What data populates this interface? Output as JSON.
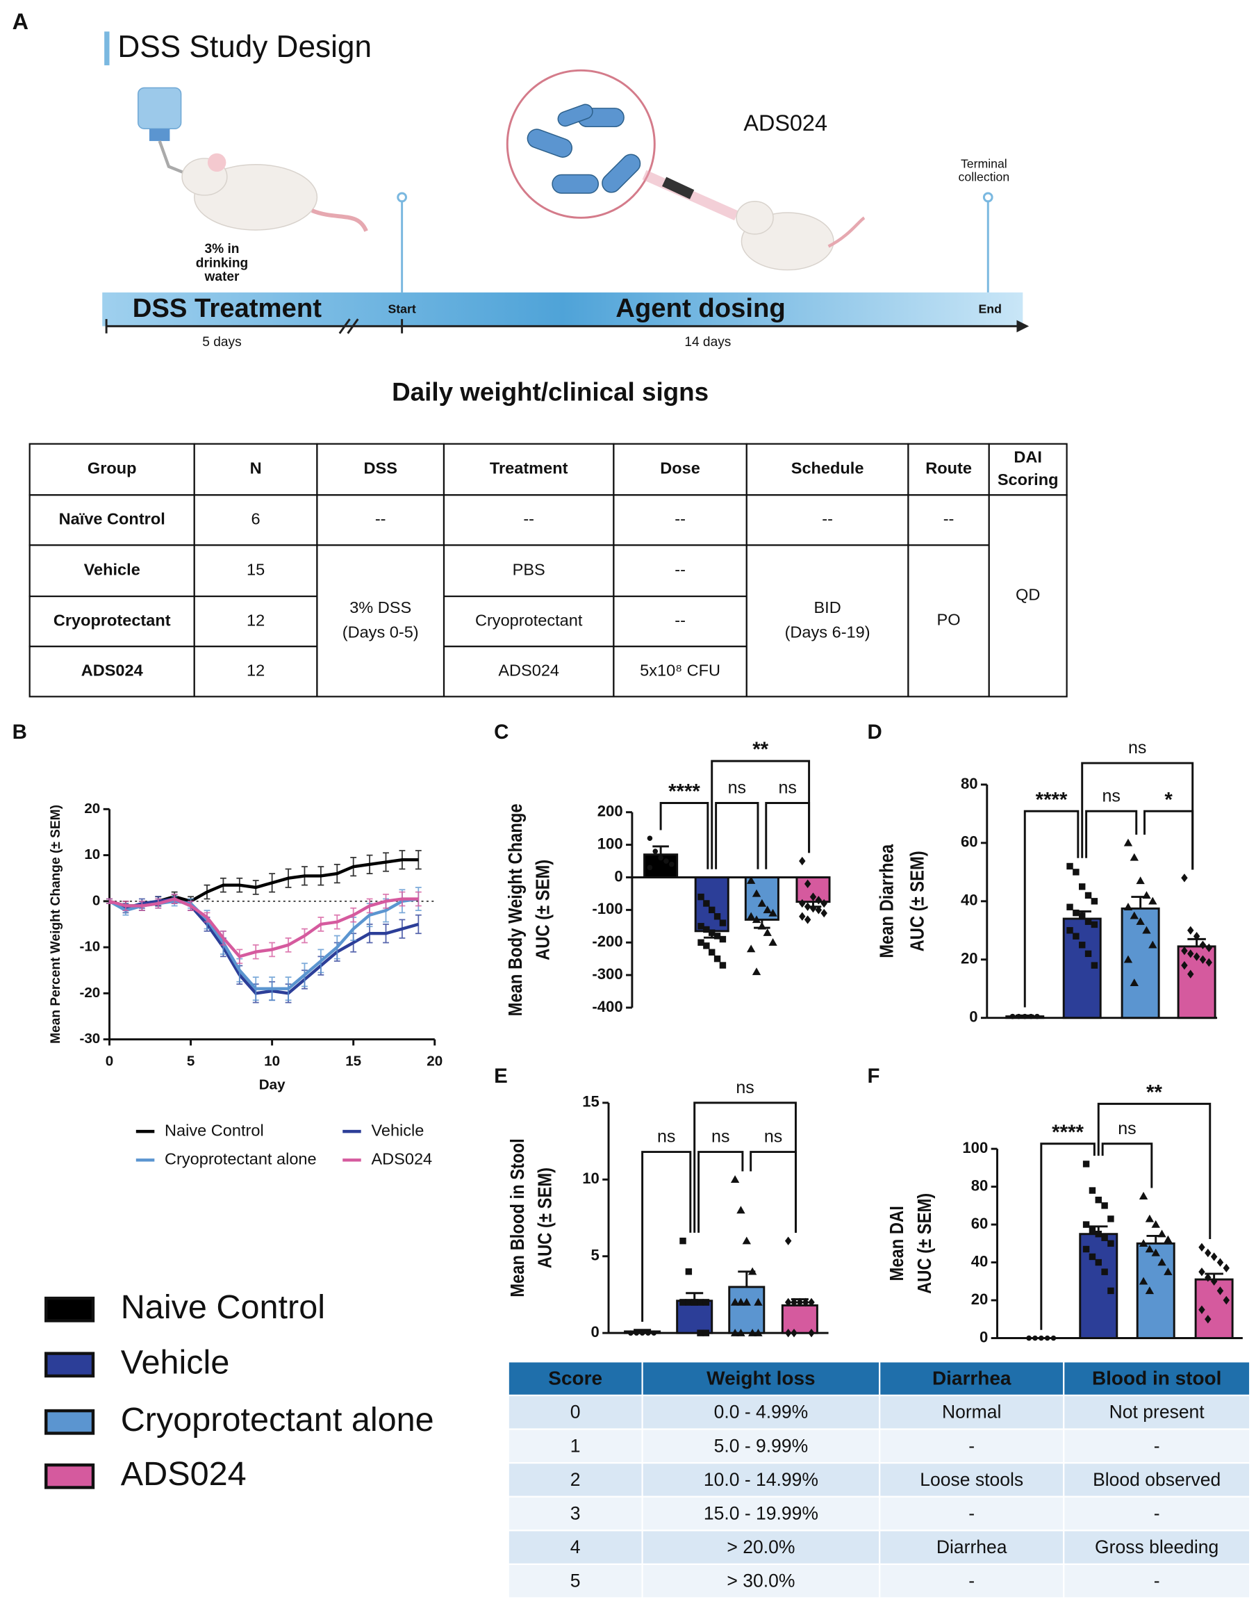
{
  "study_design": {
    "panel": "A",
    "title": "DSS Study Design",
    "water": [
      "3% in",
      "drinking",
      "water"
    ],
    "agent": "ADS024",
    "terminal": [
      "Terminal",
      "collection"
    ],
    "phase1": "DSS Treatment",
    "start": "Start",
    "phase2": "Agent dosing",
    "end": "End",
    "duration1": "5 days",
    "duration2": "14 days",
    "monitoring": "Daily weight/clinical signs"
  },
  "group_table": {
    "headers": [
      "Group",
      "N",
      "DSS",
      "Treatment",
      "Dose",
      "Schedule",
      "Route",
      [
        "DAI",
        "Scoring"
      ]
    ],
    "rows": [
      {
        "group": "Naïve Control",
        "n": "6",
        "dss": "--",
        "treatment": "--",
        "dose": "--",
        "schedule": "--",
        "route": "--"
      },
      {
        "group": "Vehicle",
        "n": "15",
        "treatment": "PBS",
        "dose": "--"
      },
      {
        "group": "Cryoprotectant",
        "n": "12",
        "treatment": "Cryoprotectant",
        "dose": "--"
      },
      {
        "group": "ADS024",
        "n": "12",
        "treatment": "ADS024",
        "dose": "5x10⁸ CFU"
      }
    ],
    "dss_merged": [
      "3% DSS",
      "(Days 0-5)"
    ],
    "schedule_merged": [
      "BID",
      "(Days 6-19)"
    ],
    "route_merged": "PO",
    "dai_merged": "QD"
  },
  "chart_data": [
    {
      "type": "line",
      "panel": "B",
      "ylabel": "Mean Percent Weight Change  (± SEM)",
      "xlabel": "Day",
      "x": [
        0,
        1,
        2,
        3,
        4,
        5,
        6,
        7,
        8,
        9,
        10,
        11,
        12,
        13,
        14,
        15,
        16,
        17,
        18,
        19
      ],
      "xlim": [
        0,
        20
      ],
      "xticks": [
        0,
        5,
        10,
        15,
        20
      ],
      "ylim": [
        -30,
        20
      ],
      "yticks": [
        -30,
        -20,
        -10,
        0,
        10,
        20
      ],
      "series": [
        {
          "name": "Naive Control",
          "color": "#000000",
          "values": [
            0,
            -1,
            -1,
            0,
            1,
            0,
            2,
            3.5,
            3.5,
            3,
            4,
            5,
            5.5,
            5.5,
            6,
            7.5,
            8,
            8.5,
            9,
            9
          ],
          "errors": [
            0.5,
            1,
            1,
            1,
            1,
            1,
            1.5,
            1.5,
            1.5,
            1.5,
            2,
            2,
            2,
            2,
            2,
            2,
            2,
            2,
            2,
            2
          ]
        },
        {
          "name": "Vehicle",
          "color": "#2c3e98",
          "values": [
            0,
            -1.5,
            -0.5,
            0,
            0.5,
            -1,
            -5,
            -10,
            -16,
            -20,
            -19.5,
            -20,
            -17,
            -14,
            -11,
            -9,
            -7,
            -7,
            -6,
            -5
          ],
          "errors": [
            0.5,
            1,
            1,
            1,
            1,
            1,
            1.5,
            2,
            2,
            2,
            2,
            2,
            2,
            2,
            2,
            2,
            2,
            2,
            2,
            2
          ]
        },
        {
          "name": "Cryoprotectant alone",
          "color": "#5b95d0",
          "values": [
            0,
            -2,
            -1,
            -0.5,
            0,
            -0.5,
            -4,
            -9,
            -15,
            -19,
            -19,
            -19,
            -16,
            -13,
            -10,
            -6,
            -3,
            -2,
            0,
            0.5
          ],
          "errors": [
            0.5,
            1,
            1,
            1,
            1,
            1,
            2,
            2.5,
            2.5,
            2.5,
            2.5,
            2.5,
            2.5,
            2.5,
            2.5,
            2.5,
            2.5,
            2.5,
            2.5,
            2.5
          ]
        },
        {
          "name": "ADS024",
          "color": "#d55a9e",
          "values": [
            0,
            -1,
            -1,
            -0.5,
            0.5,
            -1,
            -3.5,
            -8,
            -12,
            -11,
            -10.5,
            -9.5,
            -7.5,
            -5,
            -4.5,
            -3,
            -1,
            0,
            0.5,
            0.5
          ],
          "errors": [
            0.5,
            1,
            1,
            1,
            1,
            1,
            1,
            1.5,
            1.5,
            1.5,
            1.5,
            1.5,
            1.5,
            1.5,
            1.5,
            1.5,
            1.5,
            1.5,
            1.5,
            1.5
          ]
        }
      ]
    },
    {
      "type": "bar",
      "panel": "C",
      "ylabel": [
        "Mean Body Weight Change",
        "AUC (± SEM)"
      ],
      "ylim": [
        -400,
        200
      ],
      "yticks": [
        -400,
        -300,
        -200,
        -100,
        0,
        100,
        200
      ],
      "colors": [
        "#000000",
        "#2c3e98",
        "#5b95d0",
        "#d55a9e"
      ],
      "values": [
        70,
        -165,
        -130,
        -75
      ],
      "errors": [
        25,
        20,
        25,
        15
      ],
      "points": [
        [
          120,
          80,
          60,
          50,
          40,
          30
        ],
        [
          -60,
          -80,
          -100,
          -120,
          -140,
          -150,
          -160,
          -170,
          -180,
          -190,
          -200,
          -210,
          -230,
          -250,
          -270
        ],
        [
          -10,
          -50,
          -80,
          -100,
          -110,
          -120,
          -130,
          -150,
          -170,
          -200,
          -220,
          -290
        ],
        [
          50,
          -20,
          -60,
          -70,
          -80,
          -80,
          -90,
          -95,
          -100,
          -110,
          -120,
          -130
        ]
      ],
      "brackets": [
        {
          "from": 0,
          "to": 1,
          "label": "****"
        },
        {
          "from": 1,
          "to": 2,
          "label": "ns"
        },
        {
          "from": 2,
          "to": 3,
          "label": "ns"
        },
        {
          "from": 1,
          "to": 3,
          "label": "**"
        }
      ]
    },
    {
      "type": "bar",
      "panel": "D",
      "ylabel": [
        "Mean Diarrhea",
        "AUC (± SEM)"
      ],
      "ylim": [
        0,
        80
      ],
      "yticks": [
        0,
        20,
        40,
        60,
        80
      ],
      "colors": [
        "#000000",
        "#2c3e98",
        "#5b95d0",
        "#d55a9e"
      ],
      "values": [
        0.5,
        34,
        37.5,
        24.5
      ],
      "errors": [
        0.3,
        2.5,
        4,
        2.5
      ],
      "points": [
        [
          0.5,
          0.5,
          0.5,
          0.5,
          0.5,
          0.5
        ],
        [
          52,
          50,
          45,
          42,
          40,
          38,
          36,
          35,
          33,
          32,
          30,
          28,
          25,
          22,
          18
        ],
        [
          60,
          55,
          47,
          42,
          40,
          38,
          35,
          33,
          30,
          25,
          20,
          12
        ],
        [
          48,
          30,
          28,
          25,
          24,
          23,
          22,
          21,
          20,
          19,
          18,
          15
        ]
      ],
      "brackets": [
        {
          "from": 0,
          "to": 1,
          "label": "****"
        },
        {
          "from": 1,
          "to": 2,
          "label": "ns"
        },
        {
          "from": 2,
          "to": 3,
          "label": "*"
        },
        {
          "from": 1,
          "to": 3,
          "label": "ns"
        }
      ]
    },
    {
      "type": "bar",
      "panel": "E",
      "ylabel": [
        "Mean Blood in Stool",
        "AUC (± SEM)"
      ],
      "ylim": [
        0,
        15
      ],
      "yticks": [
        0,
        5,
        10,
        15
      ],
      "colors": [
        "#000000",
        "#2c3e98",
        "#5b95d0",
        "#d55a9e"
      ],
      "values": [
        0.1,
        2.1,
        3,
        1.8
      ],
      "errors": [
        0.1,
        0.5,
        1,
        0.4
      ],
      "points": [
        [
          0,
          0,
          0,
          0,
          0,
          0
        ],
        [
          6,
          4,
          2,
          2,
          2,
          2,
          2,
          2,
          2,
          2,
          2,
          2,
          2,
          0,
          0
        ],
        [
          10,
          8,
          6,
          4,
          2,
          2,
          2,
          2,
          0,
          0,
          0,
          0
        ],
        [
          6,
          2,
          2,
          2,
          2,
          2,
          2,
          2,
          2,
          0,
          0,
          0
        ]
      ],
      "brackets": [
        {
          "from": 0,
          "to": 1,
          "label": "ns"
        },
        {
          "from": 1,
          "to": 2,
          "label": "ns"
        },
        {
          "from": 2,
          "to": 3,
          "label": "ns"
        },
        {
          "from": 1,
          "to": 3,
          "label": "ns"
        }
      ]
    },
    {
      "type": "bar",
      "panel": "F",
      "ylabel": [
        "Mean DAI",
        "AUC (± SEM)"
      ],
      "ylim": [
        0,
        100
      ],
      "yticks": [
        0,
        20,
        40,
        60,
        80,
        100
      ],
      "colors": [
        "#000000",
        "#2c3e98",
        "#5b95d0",
        "#d55a9e"
      ],
      "values": [
        0,
        55,
        50,
        31
      ],
      "errors": [
        0,
        4,
        4,
        3
      ],
      "points": [
        [
          0,
          0,
          0,
          0,
          0,
          0
        ],
        [
          92,
          78,
          73,
          70,
          63,
          60,
          57,
          55,
          53,
          50,
          47,
          43,
          40,
          35,
          25
        ],
        [
          75,
          63,
          60,
          55,
          52,
          50,
          47,
          45,
          40,
          35,
          30,
          25
        ],
        [
          48,
          45,
          43,
          40,
          37,
          35,
          32,
          30,
          25,
          20,
          15,
          10
        ]
      ],
      "brackets": [
        {
          "from": 0,
          "to": 1,
          "label": "****"
        },
        {
          "from": 1,
          "to": 2,
          "label": "ns"
        },
        {
          "from": 1,
          "to": 3,
          "label": "**"
        }
      ]
    }
  ],
  "legend": {
    "entries": [
      "Naive Control",
      "Vehicle",
      "Cryoprotectant alone",
      "ADS024"
    ],
    "colors": [
      "#000000",
      "#2c3e98",
      "#5b95d0",
      "#d55a9e"
    ]
  },
  "score_table": {
    "headers": [
      "Score",
      "Weight loss",
      "Diarrhea",
      "Blood in stool"
    ],
    "rows": [
      [
        "0",
        "0.0 - 4.99%",
        "Normal",
        "Not present"
      ],
      [
        "1",
        "5.0 - 9.99%",
        "-",
        "-"
      ],
      [
        "2",
        "10.0 - 14.99%",
        "Loose stools",
        "Blood observed"
      ],
      [
        "3",
        "15.0 - 19.99%",
        "-",
        "-"
      ],
      [
        "4",
        "> 20.0%",
        "Diarrhea",
        "Gross bleeding"
      ],
      [
        "5",
        "> 30.0%",
        "-",
        "-"
      ]
    ]
  }
}
